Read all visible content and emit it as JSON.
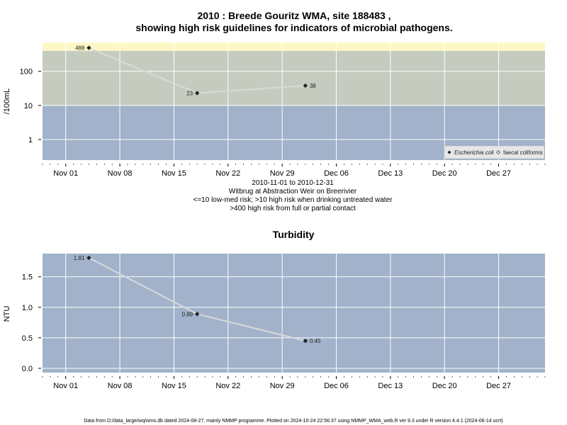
{
  "chart_data": [
    {
      "type": "line",
      "title_line1": "2010 : Breede Gouritz WMA, site 188483 ,",
      "title_line2": "showing high risk guidelines for indicators of microbial pathogens.",
      "ylabel": "/100mL",
      "y_scale": "log",
      "ylim": [
        0.25,
        700
      ],
      "y_ticks": [
        1,
        10,
        100
      ],
      "y_tick_labels": [
        "1",
        "10",
        "100"
      ],
      "x_tick_labels": [
        "Nov 01",
        "Nov 08",
        "Nov 15",
        "Nov 22",
        "Nov 29",
        "Dec 06",
        "Dec 13",
        "Dec 20",
        "Dec 27"
      ],
      "x_tick_dates": [
        "2010-11-01",
        "2010-11-08",
        "2010-11-15",
        "2010-11-22",
        "2010-11-29",
        "2010-12-06",
        "2010-12-13",
        "2010-12-20",
        "2010-12-27"
      ],
      "xlim": [
        "2010-10-29",
        "2011-01-02"
      ],
      "grid": true,
      "bands": [
        {
          "from": 0.25,
          "to": 10,
          "color": "#a1b2ca"
        },
        {
          "from": 10,
          "to": 400,
          "color": "#c5ccbf"
        },
        {
          "from": 400,
          "to": 700,
          "color": "#fdf7c6"
        }
      ],
      "series": [
        {
          "name": "Escherichia coli",
          "x": [
            "2010-11-04",
            "2010-11-18",
            "2010-12-02"
          ],
          "values": [
            488,
            23,
            38
          ],
          "data_labels": [
            "488",
            "23",
            "38"
          ]
        }
      ],
      "legend": {
        "position": "bottom-right",
        "entries": [
          "Escherichia coli",
          "faecal coliforms"
        ]
      },
      "notes": [
        "2010-11-01 to 2010-12-31",
        "Witbrug at Abstraction Weir on Breerivier",
        "<=10 low-med risk; >10 high risk when drinking untreated water",
        ">400 high risk from full or partial contact"
      ]
    },
    {
      "type": "line",
      "title": "Turbidity",
      "ylabel": "NTU",
      "ylim": [
        -0.07,
        1.88
      ],
      "y_ticks": [
        0,
        0.5,
        1,
        1.5
      ],
      "y_tick_labels": [
        "0.0",
        "0.5",
        "1.0",
        "1.5"
      ],
      "x_tick_labels": [
        "Nov 01",
        "Nov 08",
        "Nov 15",
        "Nov 22",
        "Nov 29",
        "Dec 06",
        "Dec 13",
        "Dec 20",
        "Dec 27"
      ],
      "x_tick_dates": [
        "2010-11-01",
        "2010-11-08",
        "2010-11-15",
        "2010-11-22",
        "2010-11-29",
        "2010-12-06",
        "2010-12-13",
        "2010-12-20",
        "2010-12-27"
      ],
      "xlim": [
        "2010-10-29",
        "2011-01-02"
      ],
      "grid": true,
      "background": "#a1b2ca",
      "series": [
        {
          "x": [
            "2010-11-04",
            "2010-11-18",
            "2010-12-02"
          ],
          "values": [
            1.81,
            0.89,
            0.45
          ],
          "data_labels": [
            "1.81",
            "0.89",
            "0.45"
          ]
        }
      ]
    }
  ],
  "footer": "Data from D:/data_large/wq/wms.db dated 2024-08-27, mainly NMMP programme. Plotted on 2024-10-24 22:56:37 using NMMP_WMA_web.R ver 9.3 under R version 4.4.1 (2024-06-14 ucrt)"
}
